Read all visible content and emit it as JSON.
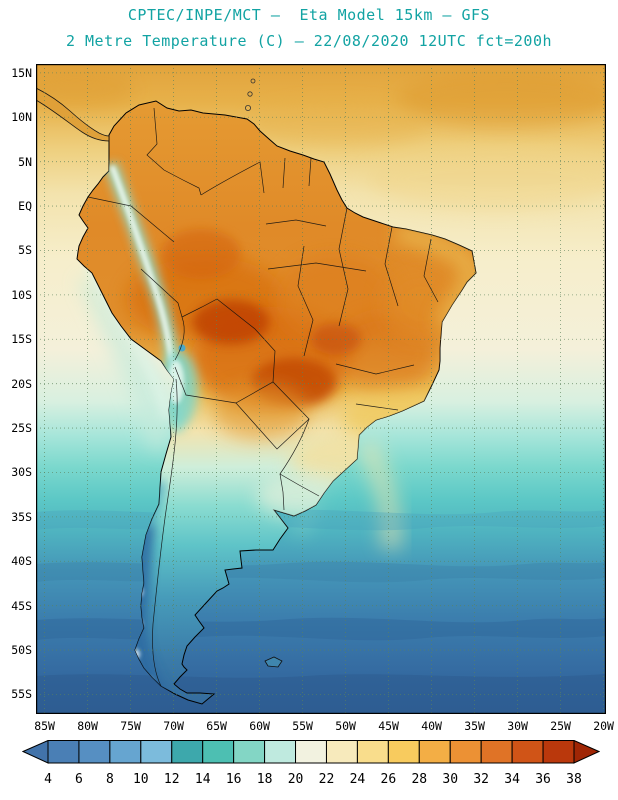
{
  "header": {
    "line1": "CPTEC/INPE/MCT –  Eta Model 15km – GFS",
    "line2": "2 Metre Temperature (C) – 22/08/2020 12UTC fct=200h",
    "accent_color": "#12a3a3"
  },
  "axes": {
    "lat_labels": [
      "15N",
      "10N",
      "5N",
      "EQ",
      "5S",
      "10S",
      "15S",
      "20S",
      "25S",
      "30S",
      "35S",
      "40S",
      "45S",
      "50S",
      "55S"
    ],
    "lon_labels": [
      "85W",
      "80W",
      "75W",
      "70W",
      "65W",
      "60W",
      "55W",
      "50W",
      "45W",
      "40W",
      "35W",
      "30W",
      "25W",
      "20W"
    ]
  },
  "colorbar": {
    "labels": [
      "4",
      "6",
      "8",
      "10",
      "12",
      "14",
      "16",
      "18",
      "20",
      "22",
      "24",
      "26",
      "28",
      "30",
      "32",
      "34",
      "36",
      "38"
    ],
    "colors": [
      "#4273aa",
      "#4a7fb5",
      "#568fc2",
      "#66a5d0",
      "#7cbbdc",
      "#3da8ac",
      "#4dbfb2",
      "#83d6c5",
      "#bfeadf",
      "#f2f2e0",
      "#f7eabc",
      "#f9dd8c",
      "#f8cb5e",
      "#f3ae45",
      "#ec9134",
      "#e07326",
      "#d05417",
      "#ba380c",
      "#a02605"
    ]
  }
}
